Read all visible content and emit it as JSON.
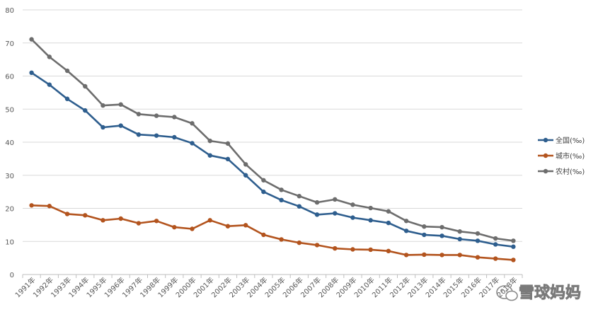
{
  "chart_data": {
    "type": "line",
    "title": "",
    "xlabel": "",
    "ylabel": "",
    "ylim": [
      0,
      80
    ],
    "yticks": [
      "0",
      "10",
      "20",
      "30",
      "40",
      "50",
      "60",
      "70",
      "80"
    ],
    "categories": [
      "1991年",
      "1992年",
      "1993年",
      "1994年",
      "1995年",
      "1996年",
      "1997年",
      "1998年",
      "1999年",
      "2000年",
      "2001年",
      "2002年",
      "2003年",
      "2004年",
      "2005年",
      "2006年",
      "2007年",
      "2008年",
      "2009年",
      "2010年",
      "2011年",
      "2012年",
      "2013年",
      "2014年",
      "2015年",
      "2016年",
      "2017年",
      "2018年"
    ],
    "grid": true,
    "legend": "right",
    "series": [
      {
        "name": "全国(‰)",
        "color": "#2e5e8e",
        "values": [
          61.0,
          57.4,
          53.1,
          49.6,
          44.5,
          45.0,
          42.3,
          42.0,
          41.5,
          39.7,
          36.0,
          34.9,
          30.0,
          25.0,
          22.5,
          20.6,
          18.1,
          18.5,
          17.2,
          16.4,
          15.6,
          13.2,
          12.0,
          11.7,
          10.7,
          10.2,
          9.1,
          8.4
        ]
      },
      {
        "name": "城市(‰)",
        "color": "#b3541e",
        "values": [
          20.9,
          20.7,
          18.3,
          17.9,
          16.4,
          16.9,
          15.5,
          16.2,
          14.3,
          13.8,
          16.4,
          14.6,
          14.9,
          12.0,
          10.6,
          9.6,
          8.9,
          7.9,
          7.6,
          7.5,
          7.1,
          5.9,
          6.0,
          5.9,
          5.9,
          5.2,
          4.8,
          4.4
        ]
      },
      {
        "name": "农村(‰)",
        "color": "#6d6d6d",
        "values": [
          71.1,
          65.8,
          61.6,
          56.9,
          51.1,
          51.4,
          48.5,
          48.0,
          47.6,
          45.7,
          40.4,
          39.6,
          33.3,
          28.5,
          25.6,
          23.7,
          21.8,
          22.7,
          21.1,
          20.1,
          19.1,
          16.2,
          14.5,
          14.3,
          13.0,
          12.4,
          10.9,
          10.2
        ]
      }
    ]
  },
  "watermark": {
    "text": "雪球妈妈",
    "icon": "wechat-icon"
  }
}
